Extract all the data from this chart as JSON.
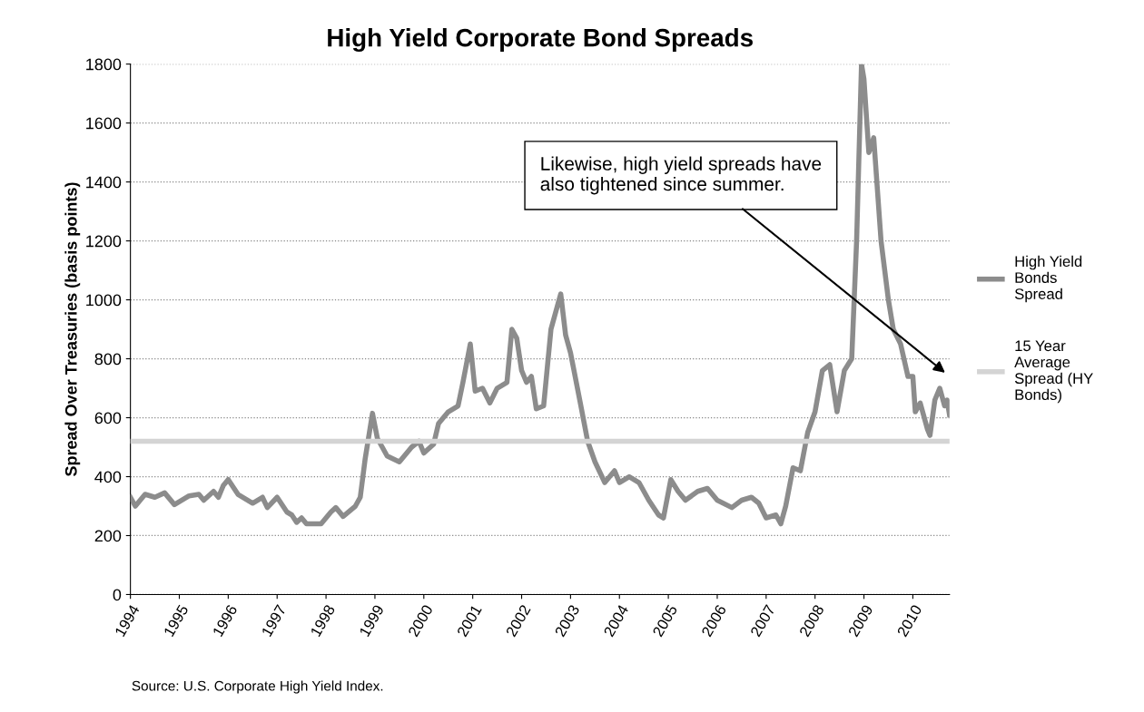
{
  "chart_data": {
    "type": "line",
    "title": "High Yield Corporate Bond Spreads",
    "ylabel": "Spread Over Treasuries (basis points)",
    "xlim": [
      1994,
      2010.75
    ],
    "xticks": [
      1994,
      1995,
      1996,
      1997,
      1998,
      1999,
      2000,
      2001,
      2002,
      2003,
      2004,
      2005,
      2006,
      2007,
      2008,
      2009,
      2010
    ],
    "ylim": [
      0,
      1800
    ],
    "yticks": [
      0,
      200,
      400,
      600,
      800,
      1000,
      1200,
      1400,
      1600,
      1800
    ],
    "grid": "y",
    "legend": "right",
    "marker": "none",
    "line_style": "solid",
    "series": [
      {
        "name": "High Yield Bonds Spread",
        "color": "#8c8c8c",
        "x": [
          1994.0,
          1994.1,
          1994.3,
          1994.5,
          1994.7,
          1994.9,
          1995.2,
          1995.4,
          1995.5,
          1995.7,
          1995.8,
          1995.9,
          1996.0,
          1996.2,
          1996.5,
          1996.7,
          1996.8,
          1997.0,
          1997.2,
          1997.3,
          1997.4,
          1997.5,
          1997.6,
          1997.9,
          1998.1,
          1998.2,
          1998.35,
          1998.6,
          1998.7,
          1998.8,
          1998.95,
          1999.05,
          1999.25,
          1999.5,
          1999.6,
          1999.75,
          1999.9,
          2000.0,
          2000.2,
          2000.3,
          2000.5,
          2000.7,
          2000.8,
          2000.95,
          2001.05,
          2001.2,
          2001.35,
          2001.5,
          2001.7,
          2001.8,
          2001.9,
          2002.0,
          2002.1,
          2002.2,
          2002.3,
          2002.45,
          2002.6,
          2002.8,
          2002.9,
          2003.0,
          2003.2,
          2003.35,
          2003.5,
          2003.7,
          2003.9,
          2004.0,
          2004.2,
          2004.4,
          2004.6,
          2004.8,
          2004.9,
          2005.05,
          2005.2,
          2005.35,
          2005.6,
          2005.8,
          2006.0,
          2006.3,
          2006.5,
          2006.7,
          2006.85,
          2007.0,
          2007.2,
          2007.3,
          2007.4,
          2007.55,
          2007.7,
          2007.85,
          2008.0,
          2008.15,
          2008.3,
          2008.45,
          2008.6,
          2008.75,
          2008.85,
          2008.95,
          2009.0,
          2009.1,
          2009.2,
          2009.35,
          2009.5,
          2009.6,
          2009.75,
          2009.9,
          2010.0,
          2010.05,
          2010.15,
          2010.3,
          2010.35,
          2010.45,
          2010.55,
          2010.65,
          2010.7,
          2010.75
        ],
        "values": [
          330,
          300,
          340,
          330,
          345,
          305,
          335,
          340,
          320,
          350,
          330,
          370,
          390,
          340,
          310,
          330,
          295,
          330,
          280,
          270,
          245,
          260,
          240,
          240,
          280,
          295,
          265,
          300,
          330,
          460,
          615,
          530,
          470,
          450,
          470,
          500,
          520,
          480,
          510,
          580,
          620,
          640,
          720,
          850,
          690,
          700,
          650,
          700,
          720,
          900,
          870,
          760,
          720,
          740,
          630,
          640,
          900,
          1020,
          880,
          820,
          650,
          520,
          450,
          380,
          420,
          380,
          400,
          380,
          320,
          270,
          260,
          390,
          350,
          320,
          350,
          360,
          320,
          295,
          320,
          330,
          310,
          260,
          270,
          240,
          300,
          430,
          420,
          550,
          620,
          760,
          780,
          620,
          760,
          800,
          1200,
          1800,
          1750,
          1500,
          1550,
          1200,
          1000,
          900,
          850,
          740,
          740,
          620,
          650,
          560,
          540,
          660,
          700,
          640,
          660,
          610
        ]
      },
      {
        "name": "15 Year Average Spread (HY Bonds)",
        "color": "#d4d4d4",
        "x": [
          1994,
          2010.75
        ],
        "values": [
          520,
          520
        ]
      }
    ],
    "annotations": [
      "Likewise, high yield spreads have\nalso tightened since summer.",
      "Source: U.S. Corporate High Yield Index."
    ]
  }
}
